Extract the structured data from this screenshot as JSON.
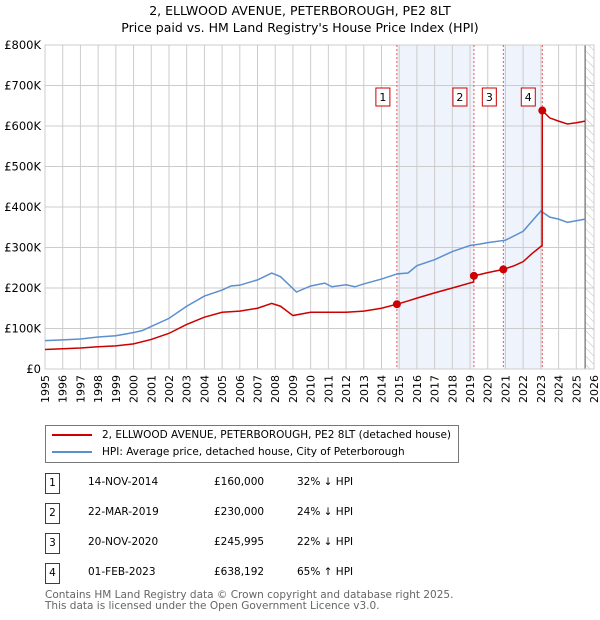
{
  "chart_data": {
    "type": "line",
    "title": "2, ELLWOOD AVENUE, PETERBOROUGH, PE2 8LT",
    "subtitle": "Price paid vs. HM Land Registry's House Price Index (HPI)",
    "xlim": [
      1995,
      2026
    ],
    "ylim": [
      0,
      800000
    ],
    "x_ticks": [
      "1995",
      "1996",
      "1997",
      "1998",
      "1999",
      "2000",
      "2001",
      "2002",
      "2003",
      "2004",
      "2005",
      "2006",
      "2007",
      "2008",
      "2009",
      "2010",
      "2011",
      "2012",
      "2013",
      "2014",
      "2015",
      "2016",
      "2017",
      "2018",
      "2019",
      "2020",
      "2021",
      "2022",
      "2023",
      "2024",
      "2025",
      "2026"
    ],
    "y_ticks": [
      {
        "v": 0,
        "label": "£0"
      },
      {
        "v": 100000,
        "label": "£100K"
      },
      {
        "v": 200000,
        "label": "£200K"
      },
      {
        "v": 300000,
        "label": "£300K"
      },
      {
        "v": 400000,
        "label": "£400K"
      },
      {
        "v": 500000,
        "label": "£500K"
      },
      {
        "v": 600000,
        "label": "£600K"
      },
      {
        "v": 700000,
        "label": "£700K"
      },
      {
        "v": 800000,
        "label": "£800K"
      }
    ],
    "grid": true,
    "series": [
      {
        "name": "2, ELLWOOD AVENUE, PETERBOROUGH, PE2 8LT (detached house)",
        "color": "#cc0000",
        "x": [
          1995,
          1996,
          1997,
          1998,
          1999,
          2000,
          2001,
          2002,
          2003,
          2004,
          2005,
          2006,
          2007,
          2007.8,
          2008.3,
          2009,
          2010,
          2011,
          2012,
          2013,
          2014,
          2014.87,
          2015.5,
          2016,
          2017,
          2018,
          2019.2,
          2019.22,
          2020,
          2020.88,
          2021.5,
          2022,
          2022.5,
          2023.07,
          2023.08,
          2023.5,
          2024,
          2024.5,
          2025,
          2025.5
        ],
        "y": [
          48000,
          50000,
          52000,
          55000,
          57000,
          62000,
          73000,
          88000,
          110000,
          128000,
          140000,
          143000,
          150000,
          162000,
          155000,
          132000,
          140000,
          140000,
          140000,
          143000,
          150000,
          160000,
          168000,
          175000,
          188000,
          200000,
          215000,
          230000,
          238000,
          245995,
          255000,
          265000,
          285000,
          305000,
          638192,
          620000,
          612000,
          605000,
          608000,
          612000
        ]
      },
      {
        "name": "HPI: Average price, detached house, City of Peterborough",
        "color": "#5b8fd0",
        "x": [
          1995,
          1996,
          1997,
          1998,
          1999,
          2000,
          2000.5,
          2001,
          2002,
          2003,
          2004,
          2005,
          2005.5,
          2006,
          2007,
          2007.8,
          2008.3,
          2009.2,
          2010,
          2010.8,
          2011.2,
          2012,
          2012.5,
          2013,
          2014,
          2014.9,
          2015.5,
          2016,
          2017,
          2018,
          2019,
          2019.5,
          2020,
          2021,
          2022,
          2022.5,
          2023,
          2023.5,
          2024,
          2024.5,
          2025,
          2025.5
        ],
        "y": [
          70000,
          72000,
          74000,
          79000,
          82000,
          90000,
          95000,
          105000,
          125000,
          155000,
          180000,
          195000,
          205000,
          207000,
          220000,
          237000,
          228000,
          190000,
          205000,
          212000,
          203000,
          208000,
          203000,
          210000,
          222000,
          235000,
          237000,
          255000,
          270000,
          290000,
          305000,
          308000,
          312000,
          318000,
          340000,
          365000,
          390000,
          375000,
          370000,
          362000,
          366000,
          370000
        ]
      }
    ],
    "sales": [
      {
        "n": "1",
        "x": 2014.87,
        "price": 160000,
        "date": "14-NOV-2014",
        "price_label": "£160,000",
        "hpi": "32% ↓ HPI"
      },
      {
        "n": "2",
        "x": 2019.22,
        "price": 230000,
        "date": "22-MAR-2019",
        "price_label": "£230,000",
        "hpi": "24% ↓ HPI"
      },
      {
        "n": "3",
        "x": 2020.88,
        "price": 245995,
        "date": "20-NOV-2020",
        "price_label": "£245,995",
        "hpi": "22% ↓ HPI"
      },
      {
        "n": "4",
        "x": 2023.08,
        "price": 638192,
        "date": "01-FEB-2023",
        "price_label": "£638,192",
        "hpi": "65% ↑ HPI"
      }
    ],
    "shaded": [
      [
        2014.87,
        2019.22
      ],
      [
        2020.88,
        2023.08
      ]
    ],
    "forecast_from": 2025.5
  },
  "footer": [
    "Contains HM Land Registry data © Crown copyright and database right 2025.",
    "This data is licensed under the Open Government Licence v3.0."
  ]
}
